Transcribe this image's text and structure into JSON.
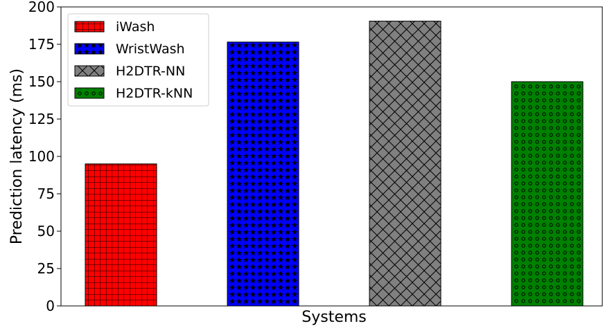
{
  "chart_data": {
    "type": "bar",
    "title": "",
    "xlabel": "Systems",
    "ylabel": "Prediction latency (ms)",
    "ylim": [
      0,
      200
    ],
    "yticks": [
      0,
      25,
      50,
      75,
      100,
      125,
      150,
      175,
      200
    ],
    "grid": false,
    "legend_position": "top-left",
    "series": [
      {
        "name": "iWash",
        "value": 95,
        "color": "#ff0000",
        "pattern": "grid"
      },
      {
        "name": "WristWash",
        "value": 176.5,
        "color": "#0000ff",
        "pattern": "stars"
      },
      {
        "name": "H2DTR-NN",
        "value": 190.5,
        "color": "#808080",
        "pattern": "cross-hatch"
      },
      {
        "name": "H2DTR-kNN",
        "value": 150,
        "color": "#008000",
        "pattern": "circles"
      }
    ]
  }
}
